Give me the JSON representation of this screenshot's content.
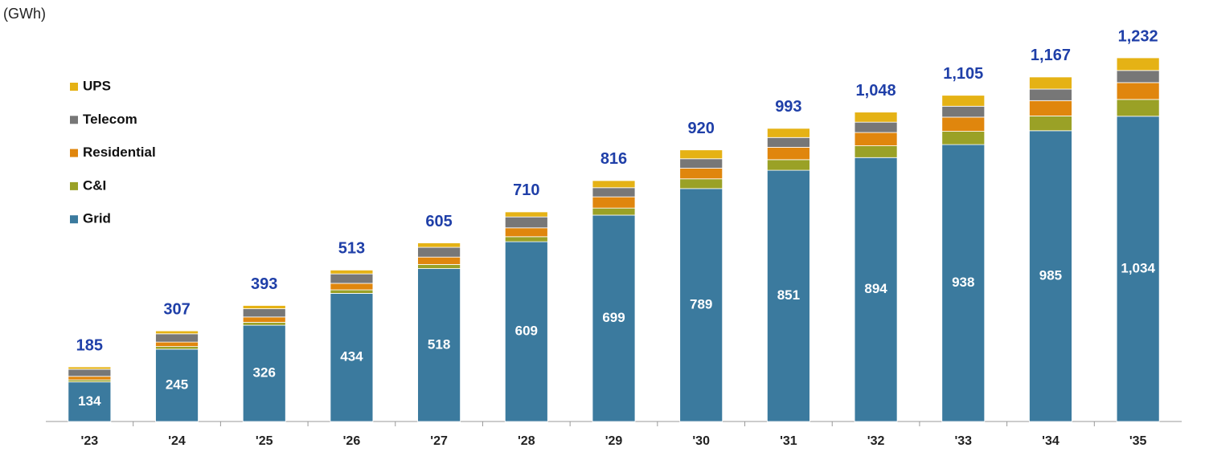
{
  "chart_data": {
    "type": "stacked_bar",
    "unit_label": "(GWh)",
    "categories": [
      "'23",
      "'24",
      "'25",
      "'26",
      "'27",
      "'28",
      "'29",
      "'30",
      "'31",
      "'32",
      "'33",
      "'34",
      "'35"
    ],
    "series": [
      {
        "name": "Grid",
        "color": "#3b7a9e",
        "values": [
          134,
          245,
          326,
          434,
          518,
          609,
          699,
          789,
          851,
          894,
          938,
          985,
          1034
        ],
        "value_labels": [
          "134",
          "245",
          "326",
          "434",
          "518",
          "609",
          "699",
          "789",
          "851",
          "894",
          "938",
          "985",
          "1,034"
        ]
      },
      {
        "name": "C&I",
        "color": "#9aa126",
        "values": [
          7,
          9,
          10,
          12,
          14,
          17,
          24,
          33,
          36,
          40,
          45,
          50,
          57
        ]
      },
      {
        "name": "Residential",
        "color": "#e0860d",
        "values": [
          12,
          15,
          18,
          22,
          25,
          30,
          38,
          36,
          42,
          45,
          48,
          52,
          57
        ]
      },
      {
        "name": "Telecom",
        "color": "#777777",
        "values": [
          24,
          28,
          28,
          32,
          33,
          37,
          31,
          32,
          33,
          35,
          37,
          39,
          41
        ]
      },
      {
        "name": "UPS",
        "color": "#e5b215",
        "values": [
          8,
          10,
          11,
          13,
          15,
          17,
          24,
          30,
          31,
          34,
          37,
          41,
          43
        ]
      }
    ],
    "totals": {
      "color": "#1f3fa8",
      "values": [
        185,
        307,
        393,
        513,
        605,
        710,
        816,
        920,
        993,
        1048,
        1105,
        1167,
        1232
      ],
      "value_labels": [
        "185",
        "307",
        "393",
        "513",
        "605",
        "710",
        "816",
        "920",
        "993",
        "1,048",
        "1,105",
        "1,167",
        "1,232"
      ]
    },
    "ylim": [
      0,
      1300
    ],
    "legend": "upper-left"
  }
}
